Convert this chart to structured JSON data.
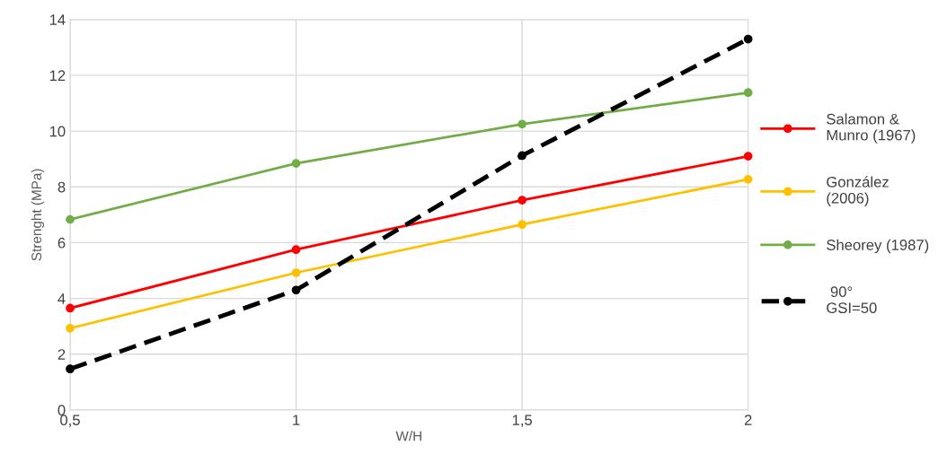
{
  "chart_data": {
    "type": "line",
    "xlabel": "W/H",
    "ylabel": "Strenght (MPa)",
    "x": [
      0.5,
      1,
      1.5,
      2
    ],
    "xlim": [
      0.5,
      2
    ],
    "xticks": [
      {
        "value": 0.5,
        "label": "0,5"
      },
      1,
      {
        "value": 1.5,
        "label": "1,5"
      },
      2
    ],
    "ylim": [
      0,
      14
    ],
    "yticks": [
      0,
      2,
      4,
      6,
      8,
      10,
      12,
      14
    ],
    "grid": true,
    "legend": "right",
    "marker": "circle",
    "series": [
      {
        "name": "Salamon &\nMunro (1967)",
        "color": "#ff0000",
        "values": [
          3.65,
          5.75,
          7.52,
          9.1
        ],
        "line_style": "solid"
      },
      {
        "name": "González\n(2006)",
        "color": "#ffc000",
        "values": [
          2.93,
          4.92,
          6.65,
          8.27
        ],
        "line_style": "solid"
      },
      {
        "name": "Sheorey (1987)",
        "color": "#70ad47",
        "values": [
          6.83,
          8.84,
          10.25,
          11.38
        ],
        "line_style": "solid"
      },
      {
        "name": " 90°\nGSI=50",
        "color": "#000000",
        "values": [
          1.47,
          4.3,
          9.12,
          13.3
        ],
        "line_style": "dashed"
      }
    ]
  }
}
